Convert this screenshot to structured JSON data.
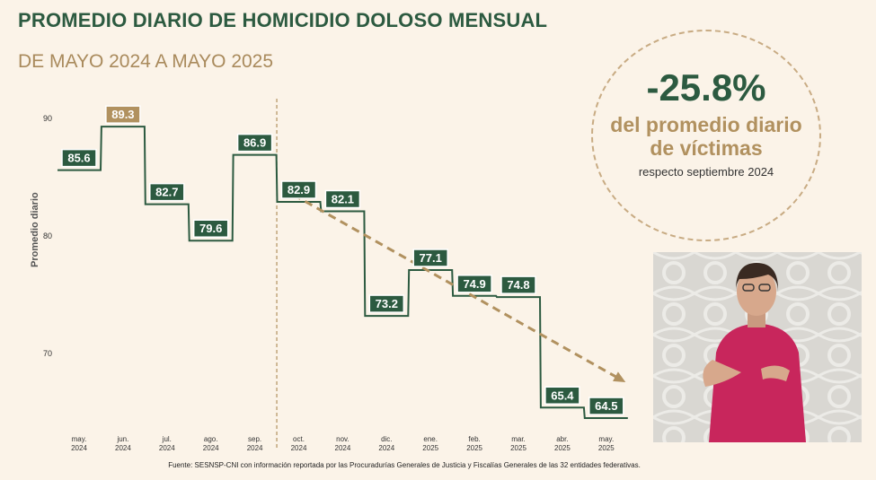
{
  "header": {
    "title": "PROMEDIO DIARIO DE HOMICIDIO DOLOSO MENSUAL",
    "subtitle": "DE MAYO 2024 A MAYO 2025"
  },
  "highlight": {
    "value": "-25.8%",
    "line1": "del promedio diario",
    "line2": "de víctimas",
    "note": "respecto septiembre 2024"
  },
  "source": "Fuente: SESNSP-CNI con información reportada por las Procuradurías Generales de Justicia y Fiscalías Generales de las 32 entidades federativas.",
  "colors": {
    "line": "#2c5a40",
    "label_bg": "#2c5a40",
    "highlight_label_bg": "#b1915f",
    "trend": "#b1915f",
    "axis_text": "#333333"
  },
  "chart_data": {
    "type": "line",
    "step": true,
    "ylabel": "Promedio diario",
    "xlabel": "",
    "ylim": [
      66,
      93
    ],
    "yticks": [
      70,
      80,
      90
    ],
    "categories": [
      [
        "may.",
        "2024"
      ],
      [
        "jun.",
        "2024"
      ],
      [
        "jul.",
        "2024"
      ],
      [
        "ago.",
        "2024"
      ],
      [
        "sep.",
        "2024"
      ],
      [
        "oct.",
        "2024"
      ],
      [
        "nov.",
        "2024"
      ],
      [
        "dic.",
        "2024"
      ],
      [
        "ene.",
        "2025"
      ],
      [
        "feb.",
        "2025"
      ],
      [
        "mar.",
        "2025"
      ],
      [
        "abr.",
        "2025"
      ],
      [
        "may.",
        "2025"
      ]
    ],
    "series": [
      {
        "values": [
          85.6,
          89.3,
          82.7,
          79.6,
          86.9,
          82.9,
          82.1,
          73.2,
          77.1,
          74.9,
          74.8,
          65.4,
          64.5
        ],
        "labels": [
          "85.6",
          "89.3",
          "82.7",
          "79.6",
          "86.9",
          "82.9",
          "82.1",
          "73.2",
          "77.1",
          "74.9",
          "74.8",
          "65.4",
          "64.5"
        ]
      }
    ],
    "highlight_index": 1,
    "reference_line_after_index": 4,
    "trend_arrow": {
      "from_index": 5,
      "to_index": 12
    },
    "grid": false
  }
}
